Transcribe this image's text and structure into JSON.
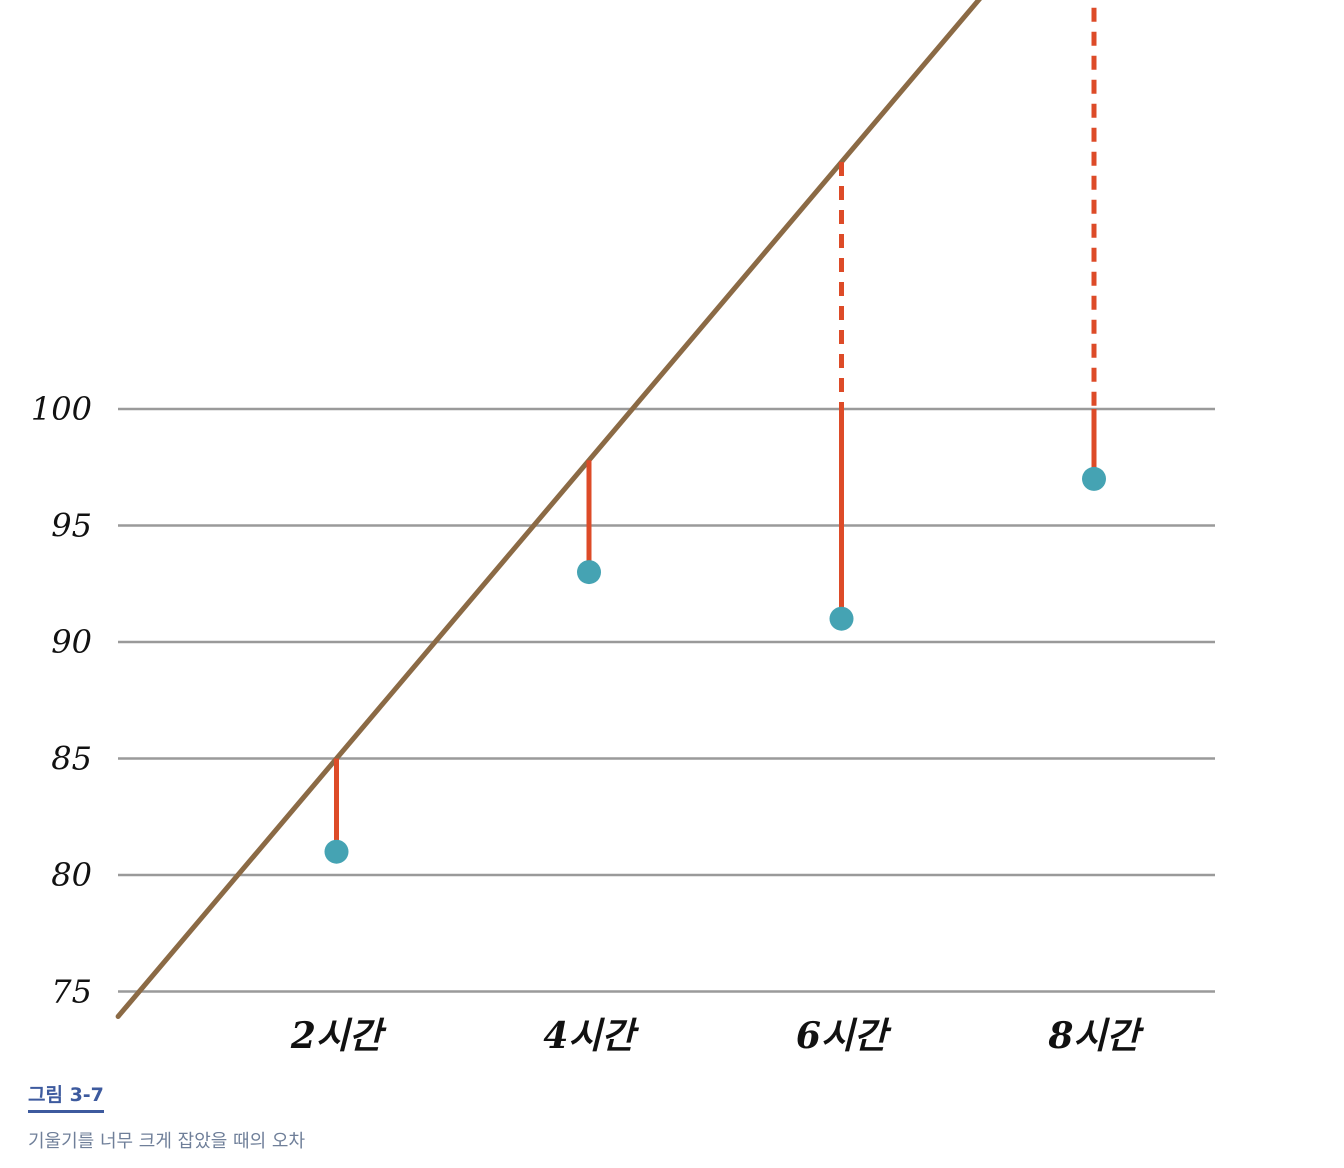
{
  "figure": {
    "label": "그림 3-7",
    "caption": "기울기를 너무 크게 잡았을 때의 오차"
  },
  "chart_data": {
    "type": "scatter",
    "x": [
      2,
      4,
      6,
      8
    ],
    "x_tick_labels": [
      "2시간",
      "4시간",
      "6시간",
      "8시간"
    ],
    "y": [
      81,
      93,
      91,
      97
    ],
    "y_ticks": [
      75,
      80,
      85,
      90,
      95,
      100
    ],
    "ylim": [
      75,
      100
    ],
    "grid": true,
    "fit_line": {
      "slope": 6.4,
      "intercept": 72.2
    },
    "colors": {
      "points": "#45a3b3",
      "fit_line": "#8b6a45",
      "error": "#dd4b28",
      "grid": "#9a9a9a"
    }
  }
}
